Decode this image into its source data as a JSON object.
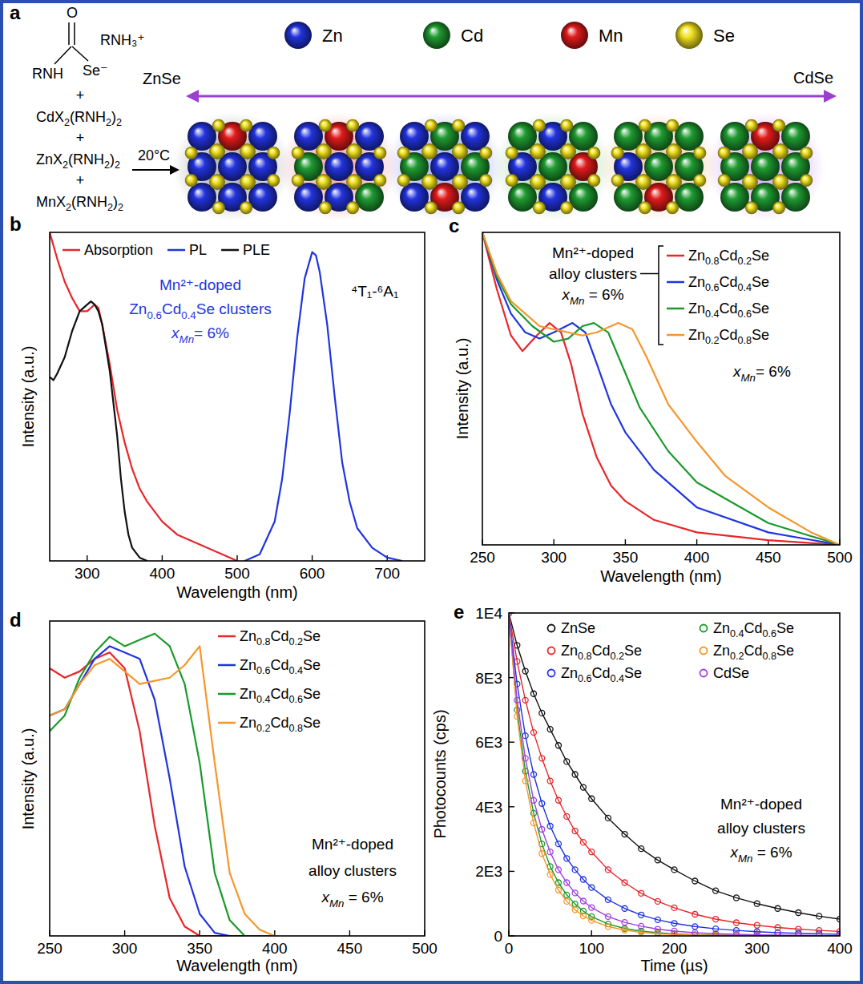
{
  "panel_a": {
    "panel_label": "a",
    "carbonyl_oxygen": "O",
    "amide_group": "RNH",
    "selenide": "Se⁻",
    "counter_ion": "RNH₃⁺",
    "plus": "+",
    "precursors": [
      "CdX2(RNH2)2",
      "ZnX2(RNH2)2",
      "MnX2(RNH2)2"
    ],
    "temperature": "20°C",
    "atoms": [
      {
        "label": "Zn",
        "color": "#2233dd"
      },
      {
        "label": "Cd",
        "color": "#1f9a30"
      },
      {
        "label": "Mn",
        "color": "#e01b1b"
      },
      {
        "label": "Se",
        "color": "#f2e21e"
      }
    ],
    "range_start": "ZnSe",
    "range_end": "CdSe"
  },
  "chart_data": [
    {
      "panel_label": "b",
      "type": "line",
      "x_label": "Wavelength (nm)",
      "y_label": "Intensity (a.u.)",
      "xlim": [
        250,
        750
      ],
      "xticks": [
        300,
        400,
        500,
        600,
        700
      ],
      "ylim": [
        0,
        1
      ],
      "tick_labels": "x",
      "legend": "top-left",
      "annotations": [
        "Mn²⁺-doped",
        "Zn0.6Cd0.4Se clusters",
        "xMn= 6%"
      ],
      "transition": "⁴T₁-⁶A₁",
      "series": [
        {
          "name": "Absorption",
          "color": "#e8262a",
          "x": [
            250,
            260,
            270,
            280,
            290,
            300,
            310,
            315,
            320,
            330,
            340,
            350,
            360,
            370,
            380,
            400,
            420,
            450,
            480,
            500
          ],
          "values": [
            1.0,
            0.92,
            0.85,
            0.8,
            0.76,
            0.76,
            0.78,
            0.77,
            0.72,
            0.6,
            0.46,
            0.36,
            0.28,
            0.22,
            0.18,
            0.12,
            0.08,
            0.05,
            0.02,
            0
          ]
        },
        {
          "name": "PL",
          "color": "#1f35e0",
          "x": [
            510,
            530,
            550,
            560,
            570,
            580,
            590,
            600,
            605,
            610,
            620,
            630,
            640,
            650,
            660,
            680,
            700,
            720
          ],
          "values": [
            0,
            0.02,
            0.12,
            0.25,
            0.45,
            0.68,
            0.86,
            0.94,
            0.93,
            0.88,
            0.72,
            0.5,
            0.3,
            0.18,
            0.1,
            0.04,
            0.01,
            0
          ]
        },
        {
          "name": "PLE",
          "color": "#111111",
          "x": [
            250,
            255,
            260,
            270,
            280,
            290,
            300,
            305,
            310,
            315,
            320,
            330,
            340,
            345,
            350,
            355,
            360,
            370,
            380
          ],
          "values": [
            0.56,
            0.55,
            0.57,
            0.62,
            0.7,
            0.76,
            0.78,
            0.79,
            0.78,
            0.76,
            0.72,
            0.58,
            0.38,
            0.25,
            0.15,
            0.08,
            0.04,
            0.01,
            0
          ]
        }
      ]
    },
    {
      "panel_label": "c",
      "type": "line",
      "x_label": "Wavelength (nm)",
      "y_label": "Intensity (a.u.)",
      "xlim": [
        250,
        500
      ],
      "xticks": [
        250,
        300,
        350,
        400,
        450,
        500
      ],
      "ylim": [
        0,
        1
      ],
      "tick_labels": "x",
      "legend": "top-right",
      "annotations": [
        "Mn²⁺-doped",
        "alloy clusters",
        "xMn = 6%"
      ],
      "annotation_2": "xMn= 6%",
      "series": [
        {
          "name": "Zn0.8Cd0.2Se",
          "color": "#e8262a",
          "x": [
            250,
            260,
            270,
            278,
            288,
            297,
            305,
            312,
            320,
            330,
            340,
            350,
            370,
            400,
            450,
            500
          ],
          "values": [
            1.0,
            0.82,
            0.67,
            0.62,
            0.67,
            0.71,
            0.68,
            0.58,
            0.42,
            0.28,
            0.19,
            0.14,
            0.08,
            0.04,
            0.015,
            0
          ]
        },
        {
          "name": "Zn0.6Cd0.4Se",
          "color": "#1f35e0",
          "x": [
            250,
            260,
            270,
            280,
            290,
            300,
            313,
            322,
            330,
            340,
            350,
            370,
            400,
            450,
            500
          ],
          "values": [
            1.0,
            0.85,
            0.74,
            0.68,
            0.66,
            0.68,
            0.71,
            0.68,
            0.58,
            0.45,
            0.36,
            0.24,
            0.12,
            0.04,
            0
          ]
        },
        {
          "name": "Zn0.4Cd0.6Se",
          "color": "#1a9a2a",
          "x": [
            250,
            260,
            270,
            285,
            300,
            310,
            320,
            328,
            338,
            350,
            360,
            380,
            400,
            450,
            500
          ],
          "values": [
            1.0,
            0.86,
            0.77,
            0.7,
            0.65,
            0.66,
            0.7,
            0.71,
            0.68,
            0.55,
            0.44,
            0.3,
            0.2,
            0.07,
            0
          ]
        },
        {
          "name": "Zn0.2Cd0.8Se",
          "color": "#f5962a",
          "x": [
            250,
            260,
            270,
            290,
            310,
            320,
            330,
            345,
            355,
            365,
            380,
            400,
            420,
            450,
            480,
            500
          ],
          "values": [
            1.0,
            0.87,
            0.78,
            0.7,
            0.68,
            0.67,
            0.68,
            0.71,
            0.69,
            0.6,
            0.45,
            0.33,
            0.22,
            0.12,
            0.04,
            0
          ]
        }
      ]
    },
    {
      "panel_label": "d",
      "type": "line",
      "x_label": "Wavelength (nm)",
      "y_label": "Intensity (a.u.)",
      "xlim": [
        250,
        500
      ],
      "xticks": [
        250,
        300,
        350,
        400,
        450,
        500
      ],
      "ylim": [
        0,
        1
      ],
      "tick_labels": "x",
      "legend": "top-right",
      "annotations": [
        "Mn²⁺-doped",
        "alloy clusters",
        "xMn = 6%"
      ],
      "x": [
        250,
        260,
        270,
        280,
        290,
        300,
        310,
        320,
        330,
        340,
        350,
        360,
        370,
        380,
        390,
        400
      ],
      "series": [
        {
          "name": "Zn0.8Cd0.2Se",
          "color": "#e8262a",
          "values": [
            0.85,
            0.82,
            0.84,
            0.88,
            0.9,
            0.85,
            0.65,
            0.35,
            0.12,
            0.03,
            0,
            0,
            0,
            0,
            0,
            0
          ]
        },
        {
          "name": "Zn0.6Cd0.4Se",
          "color": "#1f35e0",
          "values": [
            0.7,
            0.72,
            0.8,
            0.88,
            0.92,
            0.9,
            0.88,
            0.75,
            0.5,
            0.22,
            0.07,
            0.01,
            0,
            0,
            0,
            0
          ]
        },
        {
          "name": "Zn0.4Cd0.6Se",
          "color": "#1a9a2a",
          "values": [
            0.65,
            0.7,
            0.82,
            0.9,
            0.95,
            0.92,
            0.94,
            0.96,
            0.92,
            0.8,
            0.55,
            0.2,
            0.05,
            0,
            0,
            0
          ]
        },
        {
          "name": "Zn0.2Cd0.8Se",
          "color": "#f5962a",
          "values": [
            0.7,
            0.72,
            0.8,
            0.86,
            0.88,
            0.84,
            0.8,
            0.81,
            0.82,
            0.86,
            0.92,
            0.55,
            0.2,
            0.07,
            0.02,
            0
          ]
        }
      ]
    },
    {
      "panel_label": "e",
      "type": "line",
      "marker": "circle",
      "x_label": "Time (µs)",
      "y_label": "Photocounts (cps)",
      "xlim": [
        0,
        400
      ],
      "xticks": [
        0,
        100,
        200,
        300,
        400
      ],
      "ylim": [
        0,
        10000
      ],
      "yticks": [
        0,
        {
          "value": 2000,
          "label": "2E3"
        },
        {
          "value": 4000,
          "label": "4E3"
        },
        {
          "value": 6000,
          "label": "6E3"
        },
        {
          "value": 8000,
          "label": "8E3"
        },
        {
          "value": 10000,
          "label": "1E4"
        }
      ],
      "legend": "top-right",
      "annotations": [
        "Mn²⁺-doped",
        "alloy clusters",
        "xMn = 6%"
      ],
      "x": [
        0,
        10,
        20,
        30,
        40,
        50,
        60,
        70,
        80,
        90,
        100,
        120,
        140,
        160,
        180,
        200,
        225,
        250,
        275,
        300,
        325,
        350,
        375,
        400
      ],
      "series": [
        {
          "name": "ZnSe",
          "color": "#111111",
          "values": [
            10000,
            9000,
            8200,
            7500,
            6900,
            6400,
            5900,
            5400,
            5000,
            4600,
            4250,
            3650,
            3150,
            2700,
            2350,
            2050,
            1700,
            1400,
            1180,
            1000,
            850,
            720,
            610,
            520
          ]
        },
        {
          "name": "Zn0.8Cd0.2Se",
          "color": "#e8262a",
          "values": [
            10000,
            8500,
            7300,
            6300,
            5500,
            4800,
            4200,
            3700,
            3250,
            2900,
            2600,
            2050,
            1650,
            1320,
            1070,
            870,
            670,
            520,
            410,
            330,
            260,
            210,
            170,
            140
          ]
        },
        {
          "name": "Zn0.6Cd0.4Se",
          "color": "#1f35e0",
          "values": [
            10000,
            7800,
            6200,
            5000,
            4100,
            3400,
            2850,
            2400,
            2050,
            1750,
            1500,
            1120,
            850,
            650,
            500,
            390,
            290,
            220,
            170,
            130,
            100,
            80,
            65,
            50
          ]
        },
        {
          "name": "Zn0.4Cd0.6Se",
          "color": "#1a9a2a",
          "values": [
            10000,
            7000,
            5100,
            3800,
            2850,
            2150,
            1650,
            1270,
            990,
            770,
            600,
            370,
            230,
            150,
            100,
            65,
            40,
            25,
            17,
            12,
            8,
            6,
            4,
            3
          ]
        },
        {
          "name": "Zn0.2Cd0.8Se",
          "color": "#f5962a",
          "values": [
            10000,
            6800,
            4800,
            3500,
            2550,
            1900,
            1420,
            1070,
            810,
            620,
            480,
            290,
            180,
            110,
            70,
            45,
            28,
            18,
            12,
            8,
            5,
            4,
            3,
            2
          ]
        },
        {
          "name": "CdSe",
          "color": "#a040e0",
          "values": [
            10000,
            7300,
            5500,
            4200,
            3300,
            2600,
            2050,
            1650,
            1330,
            1080,
            880,
            600,
            420,
            300,
            210,
            150,
            100,
            70,
            50,
            35,
            25,
            18,
            13,
            10
          ]
        }
      ]
    }
  ]
}
